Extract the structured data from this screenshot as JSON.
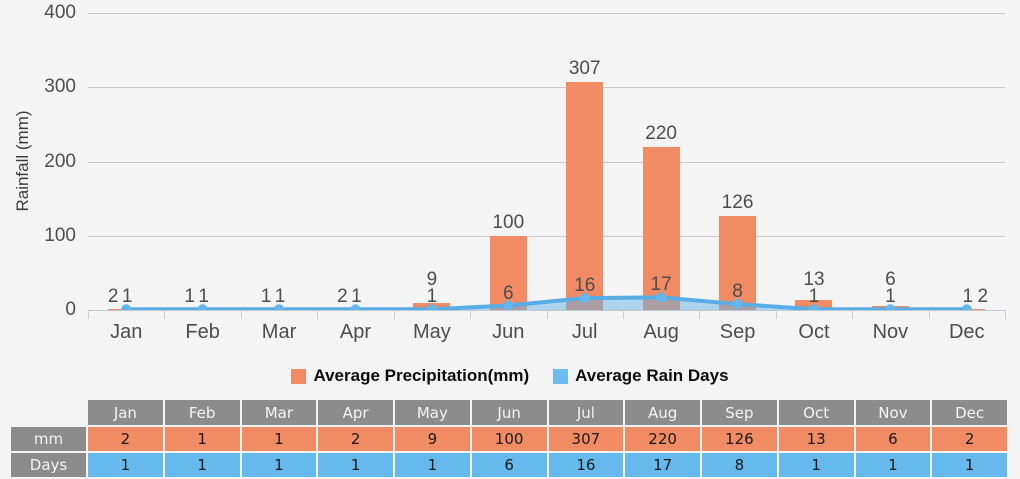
{
  "chart": {
    "y_axis_title": "Rainfall (mm)"
  },
  "chart_data": {
    "type": "bar+line",
    "categories": [
      "Jan",
      "Feb",
      "Mar",
      "Apr",
      "May",
      "Jun",
      "Jul",
      "Aug",
      "Sep",
      "Oct",
      "Nov",
      "Dec"
    ],
    "series": [
      {
        "name": "Average Precipitation(mm)",
        "type": "bar",
        "color": "#f08b63",
        "values": [
          2,
          1,
          1,
          2,
          9,
          100,
          307,
          220,
          126,
          13,
          6,
          2
        ]
      },
      {
        "name": "Average Rain Days",
        "type": "line",
        "color": "#58ade6",
        "area_color": "rgba(96,177,232,0.48)",
        "values": [
          1,
          1,
          1,
          1,
          1,
          6,
          16,
          17,
          8,
          1,
          1,
          1
        ]
      }
    ],
    "title": "",
    "xlabel": "",
    "ylabel": "Rainfall (mm)",
    "y_ticks": [
      0,
      100,
      200,
      300,
      400
    ],
    "ylim": [
      0,
      400
    ],
    "grid": true,
    "legend_position": "bottom"
  },
  "legend": {
    "precipitation": "Average Precipitation(mm)",
    "rain_days": "Average Rain Days"
  },
  "table": {
    "corner": "",
    "columns": [
      "Jan",
      "Feb",
      "Mar",
      "Apr",
      "May",
      "Jun",
      "Jul",
      "Aug",
      "Sep",
      "Oct",
      "Nov",
      "Dec"
    ],
    "row_labels": [
      "mm",
      "Days"
    ],
    "rows": [
      [
        2,
        1,
        1,
        2,
        9,
        100,
        307,
        220,
        126,
        13,
        6,
        2
      ],
      [
        1,
        1,
        1,
        1,
        1,
        6,
        16,
        17,
        8,
        1,
        1,
        1
      ]
    ]
  },
  "colors": {
    "background": "#f4f4f5",
    "bar": "#f08b63",
    "line": "#58ade6",
    "gridline": "#cbcbcb",
    "table_header": "#8c8c8c",
    "table_mm_row": "#f08b63",
    "table_days_row": "#66b9ec"
  }
}
